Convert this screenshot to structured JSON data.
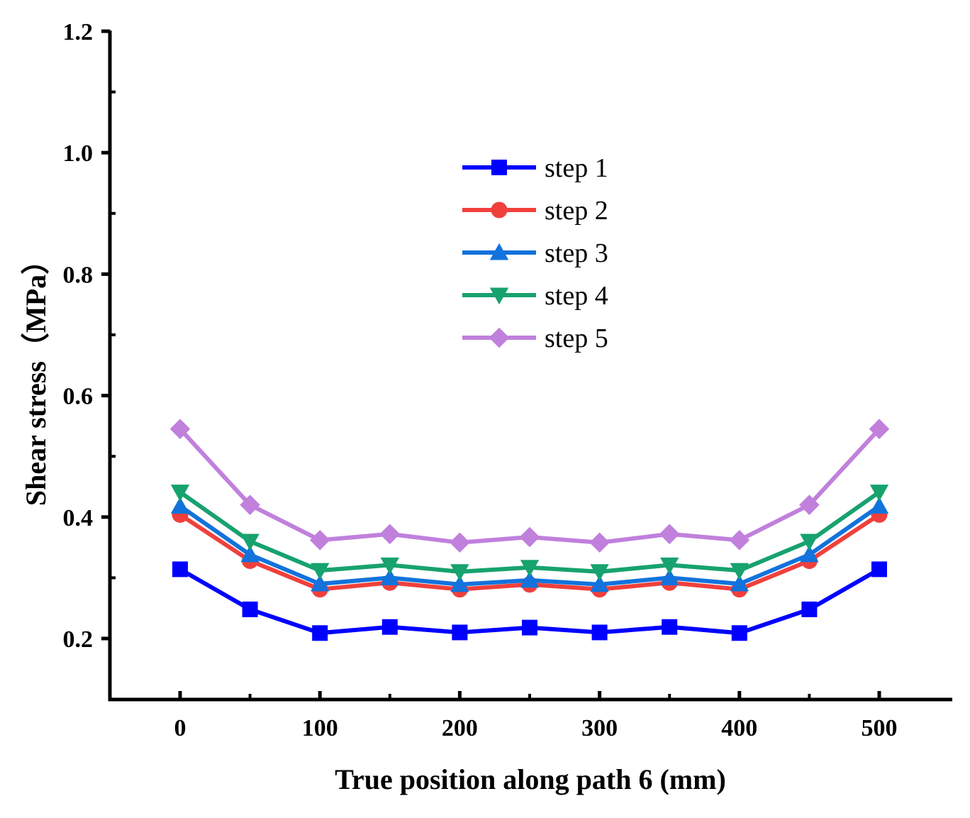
{
  "chart_data": {
    "type": "line",
    "title": "",
    "xlabel": "True position along path 6 (mm)",
    "ylabel": "Shear stress（MPa）",
    "xlim": [
      -50,
      555
    ],
    "ylim": [
      0.1,
      1.2
    ],
    "x_ticks": [
      0,
      100,
      200,
      300,
      400,
      500
    ],
    "x_tick_labels": [
      "0",
      "100",
      "200",
      "300",
      "400",
      "500"
    ],
    "y_ticks": [
      0.2,
      0.4,
      0.6,
      0.8,
      1.0,
      1.2
    ],
    "y_tick_labels": [
      "0.2",
      "0.4",
      "0.6",
      "0.8",
      "1.0",
      "1.2"
    ],
    "grid": false,
    "legend_position": "upper-center",
    "x": [
      0,
      50,
      100,
      150,
      200,
      250,
      300,
      350,
      400,
      450,
      500
    ],
    "series": [
      {
        "name": "step 1",
        "color": "#0000ff",
        "marker": "square",
        "values": [
          0.314,
          0.248,
          0.209,
          0.219,
          0.21,
          0.218,
          0.21,
          0.219,
          0.209,
          0.248,
          0.314
        ]
      },
      {
        "name": "step 2",
        "color": "#f0403c",
        "marker": "circle",
        "values": [
          0.404,
          0.328,
          0.281,
          0.292,
          0.281,
          0.289,
          0.281,
          0.292,
          0.281,
          0.328,
          0.404
        ]
      },
      {
        "name": "step 3",
        "color": "#1273dc",
        "marker": "triangle-up",
        "values": [
          0.418,
          0.338,
          0.29,
          0.3,
          0.289,
          0.296,
          0.289,
          0.3,
          0.29,
          0.338,
          0.418
        ]
      },
      {
        "name": "step 4",
        "color": "#17a26e",
        "marker": "triangle-down",
        "values": [
          0.441,
          0.36,
          0.312,
          0.321,
          0.31,
          0.317,
          0.31,
          0.321,
          0.312,
          0.36,
          0.441
        ]
      },
      {
        "name": "step 5",
        "color": "#c080dc",
        "marker": "diamond",
        "values": [
          0.545,
          0.42,
          0.362,
          0.372,
          0.358,
          0.367,
          0.358,
          0.372,
          0.362,
          0.42,
          0.545
        ]
      }
    ]
  }
}
